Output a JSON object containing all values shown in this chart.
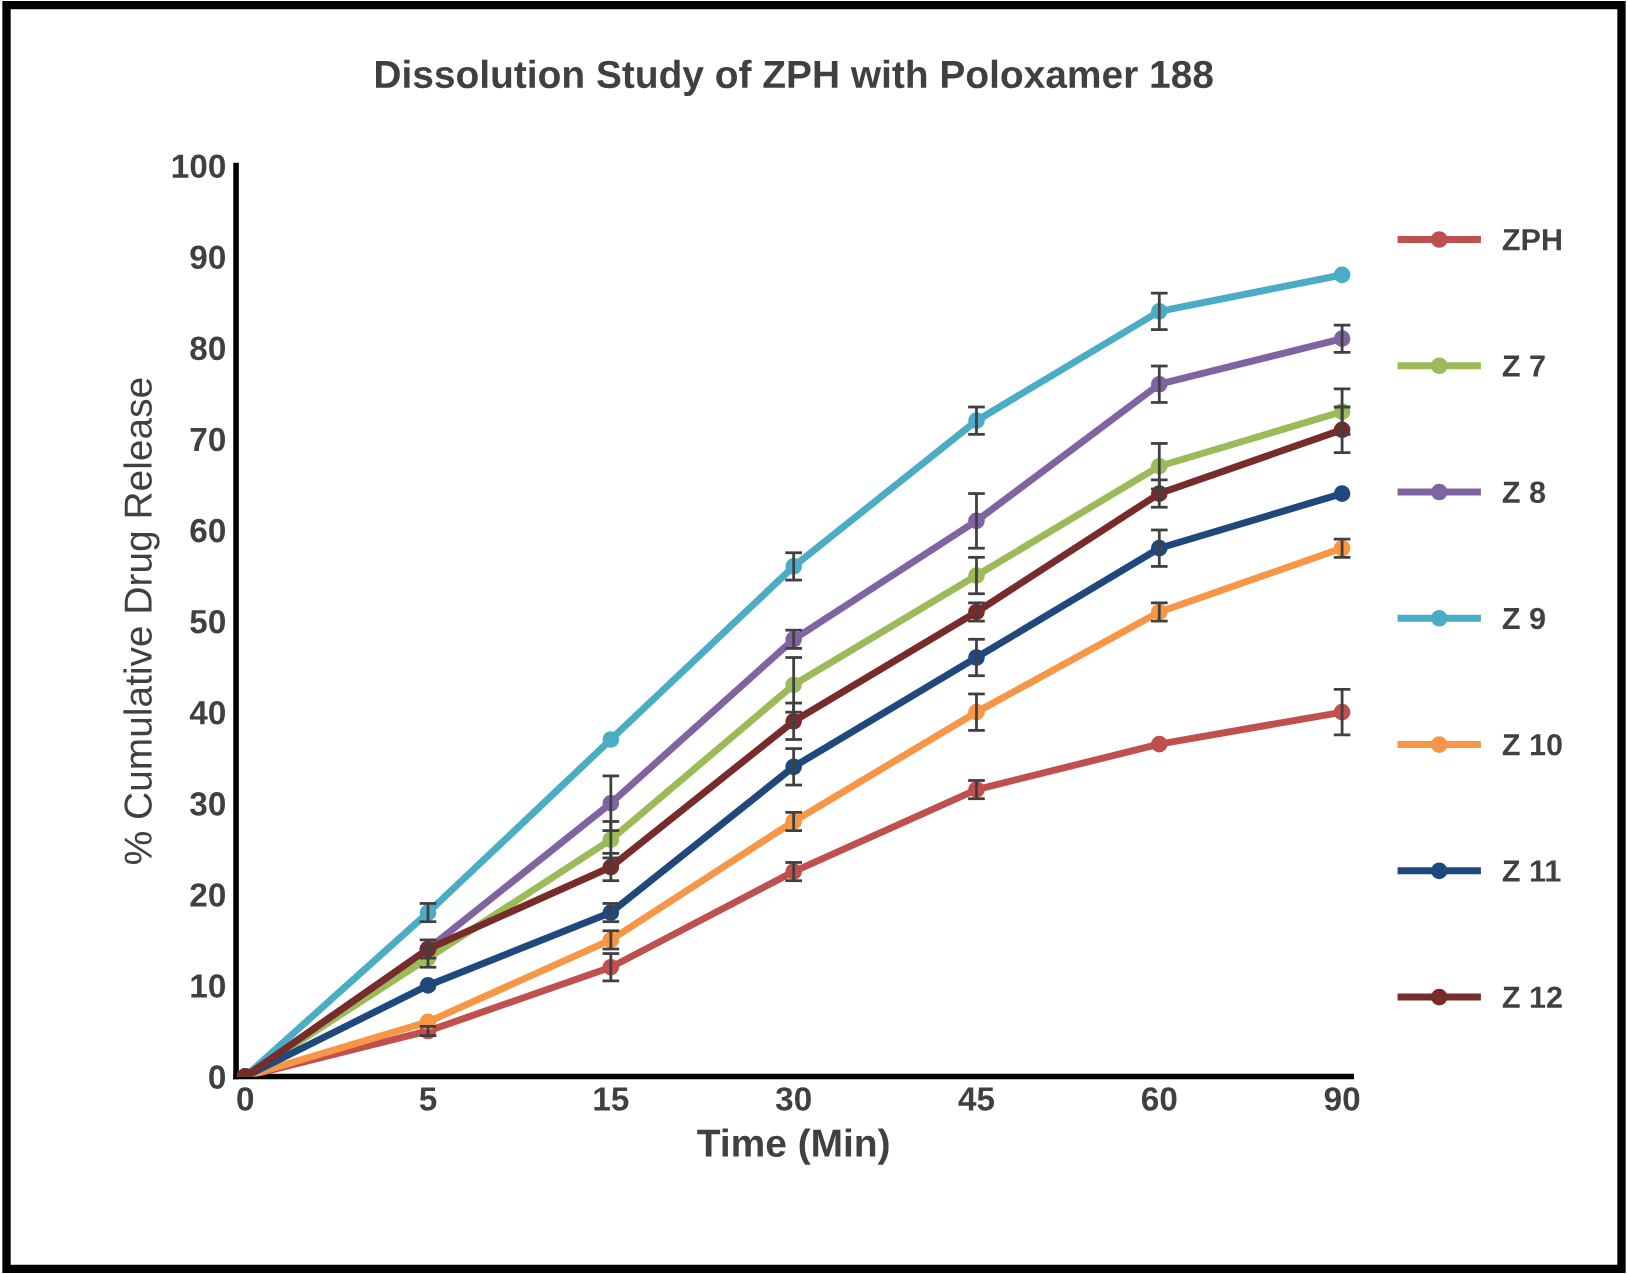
{
  "chart_data": {
    "type": "line",
    "title": "Dissolution Study of ZPH with Poloxamer 188",
    "xlabel": "Time (Min)",
    "ylabel": "% Cumulative Drug Release",
    "categories": [
      "0",
      "5",
      "15",
      "30",
      "45",
      "60",
      "90"
    ],
    "series": [
      {
        "name": "ZPH",
        "color": "#c0504d",
        "values": [
          0,
          5,
          12,
          22.5,
          31.5,
          36.5,
          40
        ],
        "errors": [
          null,
          0.5,
          1.5,
          1,
          1,
          null,
          2.5
        ]
      },
      {
        "name": "Z 7",
        "color": "#9bbb59",
        "values": [
          0,
          13,
          26,
          43,
          55,
          67,
          73
        ],
        "errors": [
          null,
          1,
          2,
          3,
          2,
          2.5,
          2.5
        ]
      },
      {
        "name": "Z 8",
        "color": "#8064a2",
        "values": [
          0,
          14,
          30,
          48,
          61,
          76,
          81
        ],
        "errors": [
          null,
          null,
          3,
          1,
          3,
          2,
          1.5
        ]
      },
      {
        "name": "Z 9",
        "color": "#4bacc6",
        "values": [
          0,
          18,
          37,
          56,
          72,
          84,
          88
        ],
        "errors": [
          null,
          1,
          null,
          1.5,
          1.5,
          2,
          null
        ]
      },
      {
        "name": "Z 10",
        "color": "#f79646",
        "values": [
          0,
          6,
          15,
          28,
          40,
          51,
          58
        ],
        "errors": [
          null,
          null,
          1,
          1,
          2,
          1,
          1
        ]
      },
      {
        "name": "Z 11",
        "color": "#1f497d",
        "values": [
          0,
          10,
          18,
          34,
          46,
          58,
          64
        ],
        "errors": [
          null,
          null,
          1,
          2,
          2,
          2,
          null
        ]
      },
      {
        "name": "Z 12",
        "color": "#772c2a",
        "values": [
          0,
          14,
          23,
          39,
          51,
          64,
          71
        ],
        "errors": [
          null,
          1,
          1.5,
          2,
          1,
          1.5,
          2.5
        ]
      }
    ],
    "ylim": [
      0,
      100
    ],
    "yticks": [
      0,
      10,
      20,
      30,
      40,
      50,
      60,
      70,
      80,
      90,
      100
    ],
    "grid": false,
    "legend": "right",
    "marker": "circle",
    "line_style": "solid"
  }
}
